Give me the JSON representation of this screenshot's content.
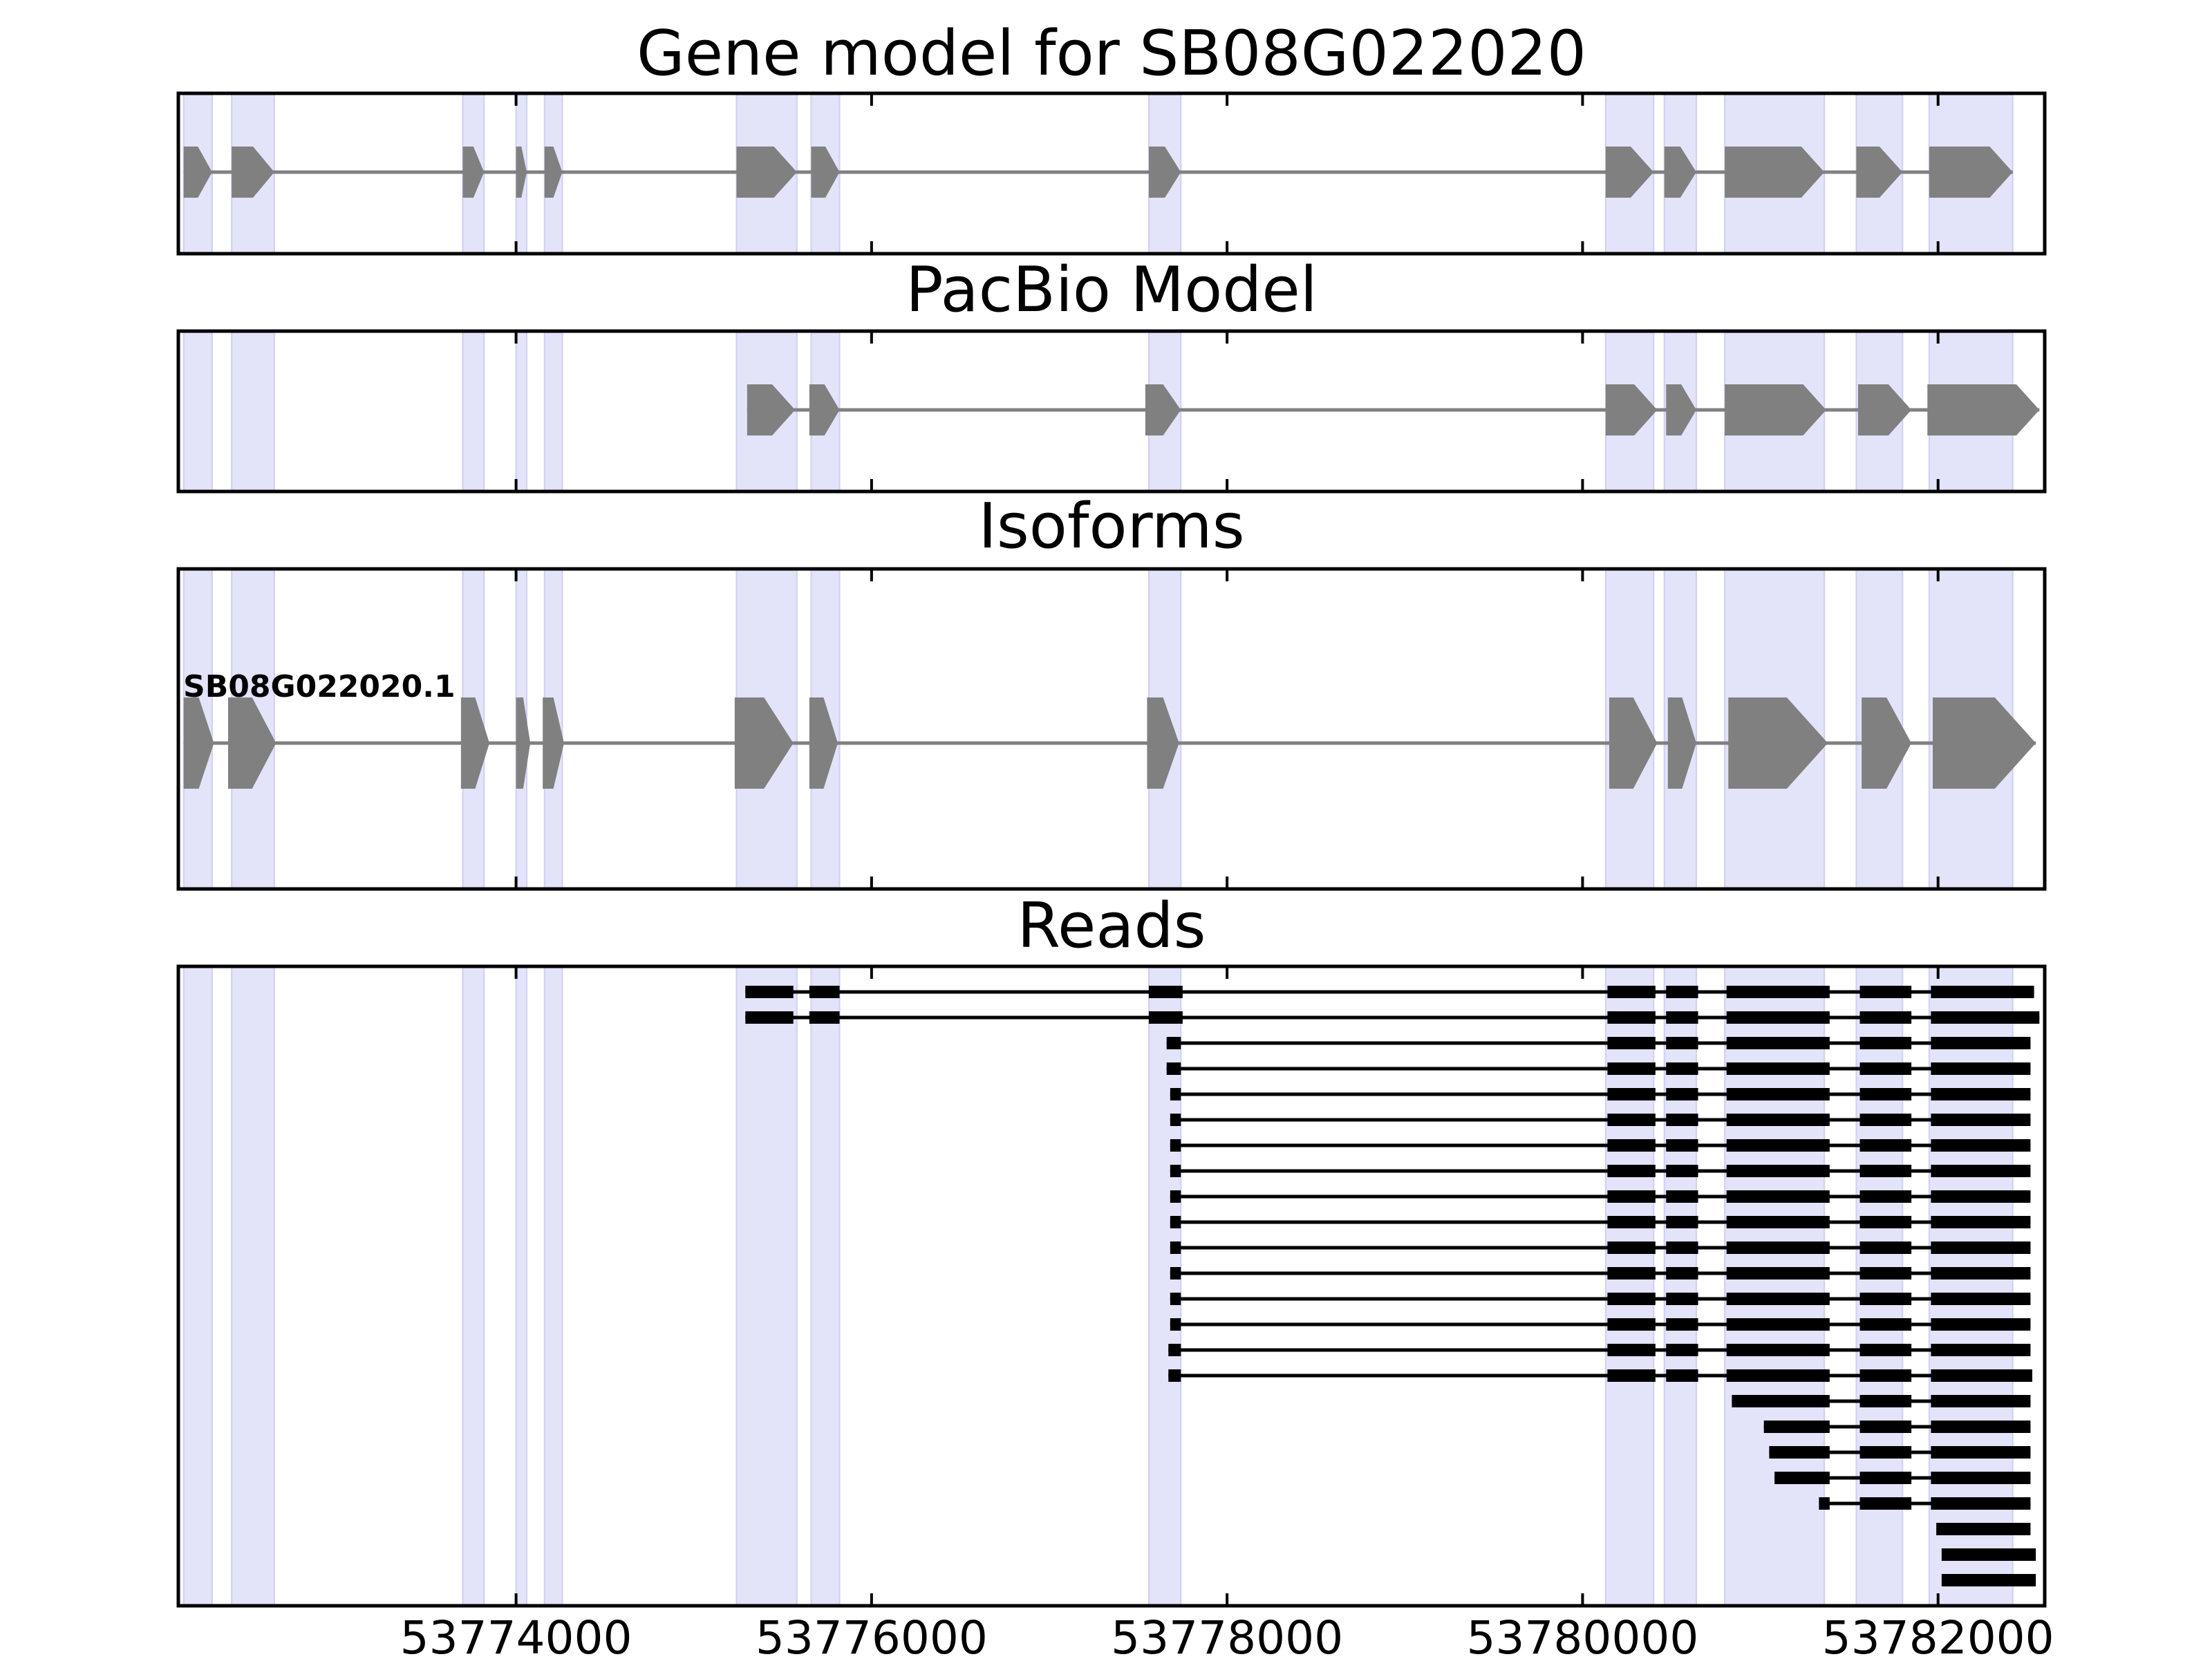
{
  "figure": {
    "title": "Gene model for SB08G022020",
    "x_range": [
      53772100,
      53782600
    ]
  },
  "colors": {
    "exon_shade": "#e3e3fa",
    "exon_shade_edge": "#cfcff2",
    "gene_shape": "#808080",
    "intron_line": "#808080",
    "read": "#000000",
    "axis": "#000000"
  },
  "chart_data": [
    {
      "type": "gene-track",
      "title": "Gene model for SB08G022020",
      "strand": "+",
      "exons": [
        [
          53772130,
          53772290
        ],
        [
          53772400,
          53772640
        ],
        [
          53773700,
          53773820
        ],
        [
          53774000,
          53774060
        ],
        [
          53774160,
          53774260
        ],
        [
          53775240,
          53775580
        ],
        [
          53775660,
          53775820
        ],
        [
          53777560,
          53777740
        ],
        [
          53780130,
          53780400
        ],
        [
          53780460,
          53780640
        ],
        [
          53780800,
          53781360
        ],
        [
          53781540,
          53781800
        ],
        [
          53781950,
          53782420
        ]
      ],
      "xticks": [
        53774000,
        53776000,
        53778000,
        53780000,
        53782000
      ],
      "xlim": [
        53772100,
        53782600
      ]
    },
    {
      "type": "gene-track",
      "title": "PacBio Model",
      "strand": "+",
      "exons": [
        [
          53775300,
          53775570
        ],
        [
          53775650,
          53775820
        ],
        [
          53777540,
          53777740
        ],
        [
          53780130,
          53780420
        ],
        [
          53780470,
          53780640
        ],
        [
          53780800,
          53781370
        ],
        [
          53781550,
          53781850
        ],
        [
          53781940,
          53782570
        ]
      ],
      "xticks": [
        53774000,
        53776000,
        53778000,
        53780000,
        53782000
      ],
      "xlim": [
        53772100,
        53782600
      ]
    },
    {
      "type": "isoform-track",
      "title": "Isoforms",
      "isoforms": [
        {
          "name": "SB08G022020.1",
          "exons": [
            [
              53772130,
              53772300
            ],
            [
              53772380,
              53772650
            ],
            [
              53773690,
              53773850
            ],
            [
              53774000,
              53774080
            ],
            [
              53774150,
              53774270
            ],
            [
              53775230,
              53775560
            ],
            [
              53775650,
              53775810
            ],
            [
              53777550,
              53777730
            ],
            [
              53780150,
              53780420
            ],
            [
              53780480,
              53780640
            ],
            [
              53780820,
              53781380
            ],
            [
              53781570,
              53781850
            ],
            [
              53781970,
              53782550
            ]
          ]
        }
      ],
      "xticks": [
        53774000,
        53776000,
        53778000,
        53780000,
        53782000
      ],
      "xlim": [
        53772100,
        53782600
      ]
    },
    {
      "type": "read-track",
      "title": "Reads",
      "xlabel": "",
      "xticks": [
        53774000,
        53776000,
        53778000,
        53780000,
        53782000
      ],
      "xtick_labels": [
        "53774000",
        "53776000",
        "53778000",
        "53780000",
        "53782000"
      ],
      "xlim": [
        53772100,
        53782600
      ],
      "reads": [
        [
          [
            53775290,
            53775560
          ],
          [
            53775650,
            53775820
          ],
          [
            53777560,
            53777750
          ],
          [
            53780140,
            53780410
          ],
          [
            53780470,
            53780650
          ],
          [
            53780810,
            53781390
          ],
          [
            53781560,
            53781850
          ],
          [
            53781960,
            53782540
          ]
        ],
        [
          [
            53775290,
            53775560
          ],
          [
            53775650,
            53775820
          ],
          [
            53777560,
            53777750
          ],
          [
            53780140,
            53780410
          ],
          [
            53780470,
            53780650
          ],
          [
            53780810,
            53781390
          ],
          [
            53781560,
            53781850
          ],
          [
            53781960,
            53782570
          ]
        ],
        [
          [
            53777660,
            53777740
          ],
          [
            53780140,
            53780410
          ],
          [
            53780470,
            53780650
          ],
          [
            53780810,
            53781390
          ],
          [
            53781560,
            53781850
          ],
          [
            53781960,
            53782520
          ]
        ],
        [
          [
            53777660,
            53777740
          ],
          [
            53780140,
            53780410
          ],
          [
            53780470,
            53780650
          ],
          [
            53780810,
            53781390
          ],
          [
            53781560,
            53781850
          ],
          [
            53781960,
            53782520
          ]
        ],
        [
          [
            53777680,
            53777740
          ],
          [
            53780140,
            53780410
          ],
          [
            53780470,
            53780650
          ],
          [
            53780810,
            53781390
          ],
          [
            53781560,
            53781850
          ],
          [
            53781960,
            53782520
          ]
        ],
        [
          [
            53777680,
            53777740
          ],
          [
            53780140,
            53780410
          ],
          [
            53780470,
            53780650
          ],
          [
            53780810,
            53781390
          ],
          [
            53781560,
            53781850
          ],
          [
            53781960,
            53782520
          ]
        ],
        [
          [
            53777680,
            53777740
          ],
          [
            53780140,
            53780410
          ],
          [
            53780470,
            53780650
          ],
          [
            53780810,
            53781390
          ],
          [
            53781560,
            53781850
          ],
          [
            53781960,
            53782520
          ]
        ],
        [
          [
            53777680,
            53777740
          ],
          [
            53780140,
            53780410
          ],
          [
            53780470,
            53780650
          ],
          [
            53780810,
            53781390
          ],
          [
            53781560,
            53781850
          ],
          [
            53781960,
            53782520
          ]
        ],
        [
          [
            53777680,
            53777740
          ],
          [
            53780140,
            53780410
          ],
          [
            53780470,
            53780650
          ],
          [
            53780810,
            53781390
          ],
          [
            53781560,
            53781850
          ],
          [
            53781960,
            53782520
          ]
        ],
        [
          [
            53777680,
            53777740
          ],
          [
            53780140,
            53780410
          ],
          [
            53780470,
            53780650
          ],
          [
            53780810,
            53781390
          ],
          [
            53781560,
            53781850
          ],
          [
            53781960,
            53782520
          ]
        ],
        [
          [
            53777680,
            53777740
          ],
          [
            53780140,
            53780410
          ],
          [
            53780470,
            53780650
          ],
          [
            53780810,
            53781390
          ],
          [
            53781560,
            53781850
          ],
          [
            53781960,
            53782520
          ]
        ],
        [
          [
            53777680,
            53777740
          ],
          [
            53780140,
            53780410
          ],
          [
            53780470,
            53780650
          ],
          [
            53780810,
            53781390
          ],
          [
            53781560,
            53781850
          ],
          [
            53781960,
            53782520
          ]
        ],
        [
          [
            53777680,
            53777740
          ],
          [
            53780140,
            53780410
          ],
          [
            53780470,
            53780650
          ],
          [
            53780810,
            53781390
          ],
          [
            53781560,
            53781850
          ],
          [
            53781960,
            53782520
          ]
        ],
        [
          [
            53777680,
            53777740
          ],
          [
            53780140,
            53780410
          ],
          [
            53780470,
            53780650
          ],
          [
            53780810,
            53781390
          ],
          [
            53781560,
            53781850
          ],
          [
            53781960,
            53782520
          ]
        ],
        [
          [
            53777670,
            53777740
          ],
          [
            53780140,
            53780410
          ],
          [
            53780470,
            53780650
          ],
          [
            53780810,
            53781390
          ],
          [
            53781560,
            53781850
          ],
          [
            53781960,
            53782520
          ]
        ],
        [
          [
            53777670,
            53777740
          ],
          [
            53780140,
            53780410
          ],
          [
            53780470,
            53780650
          ],
          [
            53780810,
            53781390
          ],
          [
            53781560,
            53781850
          ],
          [
            53781960,
            53782530
          ]
        ],
        [
          [
            53780840,
            53781390
          ],
          [
            53781560,
            53781850
          ],
          [
            53781960,
            53782520
          ]
        ],
        [
          [
            53781020,
            53781390
          ],
          [
            53781560,
            53781850
          ],
          [
            53781960,
            53782520
          ]
        ],
        [
          [
            53781050,
            53781390
          ],
          [
            53781560,
            53781850
          ],
          [
            53781960,
            53782520
          ]
        ],
        [
          [
            53781080,
            53781390
          ],
          [
            53781560,
            53781850
          ],
          [
            53781960,
            53782520
          ]
        ],
        [
          [
            53781330,
            53781390
          ],
          [
            53781560,
            53781850
          ],
          [
            53781960,
            53782520
          ]
        ],
        [
          [
            53781990,
            53782520
          ]
        ],
        [
          [
            53782020,
            53782550
          ]
        ],
        [
          [
            53782020,
            53782550
          ]
        ]
      ]
    }
  ]
}
